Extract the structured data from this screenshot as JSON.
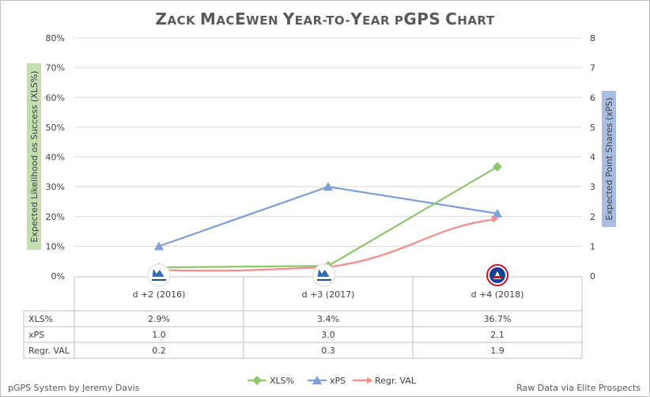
{
  "chart_data": {
    "type": "line",
    "title": "Zack MacEwen Year-to-Year pGPS Chart",
    "categories": [
      "d +2 (2016)",
      "d +3 (2017)",
      "d +4 (2018)"
    ],
    "team_logos": [
      "qmjhl-gatineau-logo",
      "qmjhl-gatineau-logo",
      "ahl-logo"
    ],
    "y_left": {
      "label": "Expected Likelihood os Success (XLS%)",
      "min": 0,
      "max": 80,
      "step": 10,
      "ticks": [
        "0%",
        "10%",
        "20%",
        "30%",
        "40%",
        "50%",
        "60%",
        "70%",
        "80%"
      ]
    },
    "y_right": {
      "label": "Expected Point Shares (xPS)",
      "min": 0,
      "max": 8,
      "step": 1,
      "ticks": [
        "0",
        "1",
        "2",
        "3",
        "4",
        "5",
        "6",
        "7",
        "8"
      ]
    },
    "series": [
      {
        "name": "XLS%",
        "axis": "left",
        "color": "#8fc66f",
        "marker": "diamond",
        "values": [
          2.9,
          3.4,
          36.7
        ],
        "labels": [
          "2.9%",
          "3.4%",
          "36.7%"
        ]
      },
      {
        "name": "xPS",
        "axis": "right",
        "color": "#7f9fd4",
        "marker": "triangle",
        "values": [
          1.0,
          3.0,
          2.1
        ],
        "labels": [
          "1.0",
          "3.0",
          "2.1"
        ]
      },
      {
        "name": "Regr. VAL",
        "axis": "right",
        "color": "#f08f8b",
        "marker": "arrow",
        "values": [
          0.2,
          0.3,
          1.9
        ],
        "labels": [
          "0.2",
          "0.3",
          "1.9"
        ]
      }
    ],
    "table_row_labels": [
      "XLS%",
      "xPS",
      "Regr. VAL"
    ],
    "legend_position": "bottom",
    "left_axis_color": "#c3dfb0",
    "right_axis_color": "#a8bde3"
  },
  "footer": {
    "left": "pGPS System by Jeremy Davis",
    "right": "Raw Data via Elite Prospects"
  }
}
